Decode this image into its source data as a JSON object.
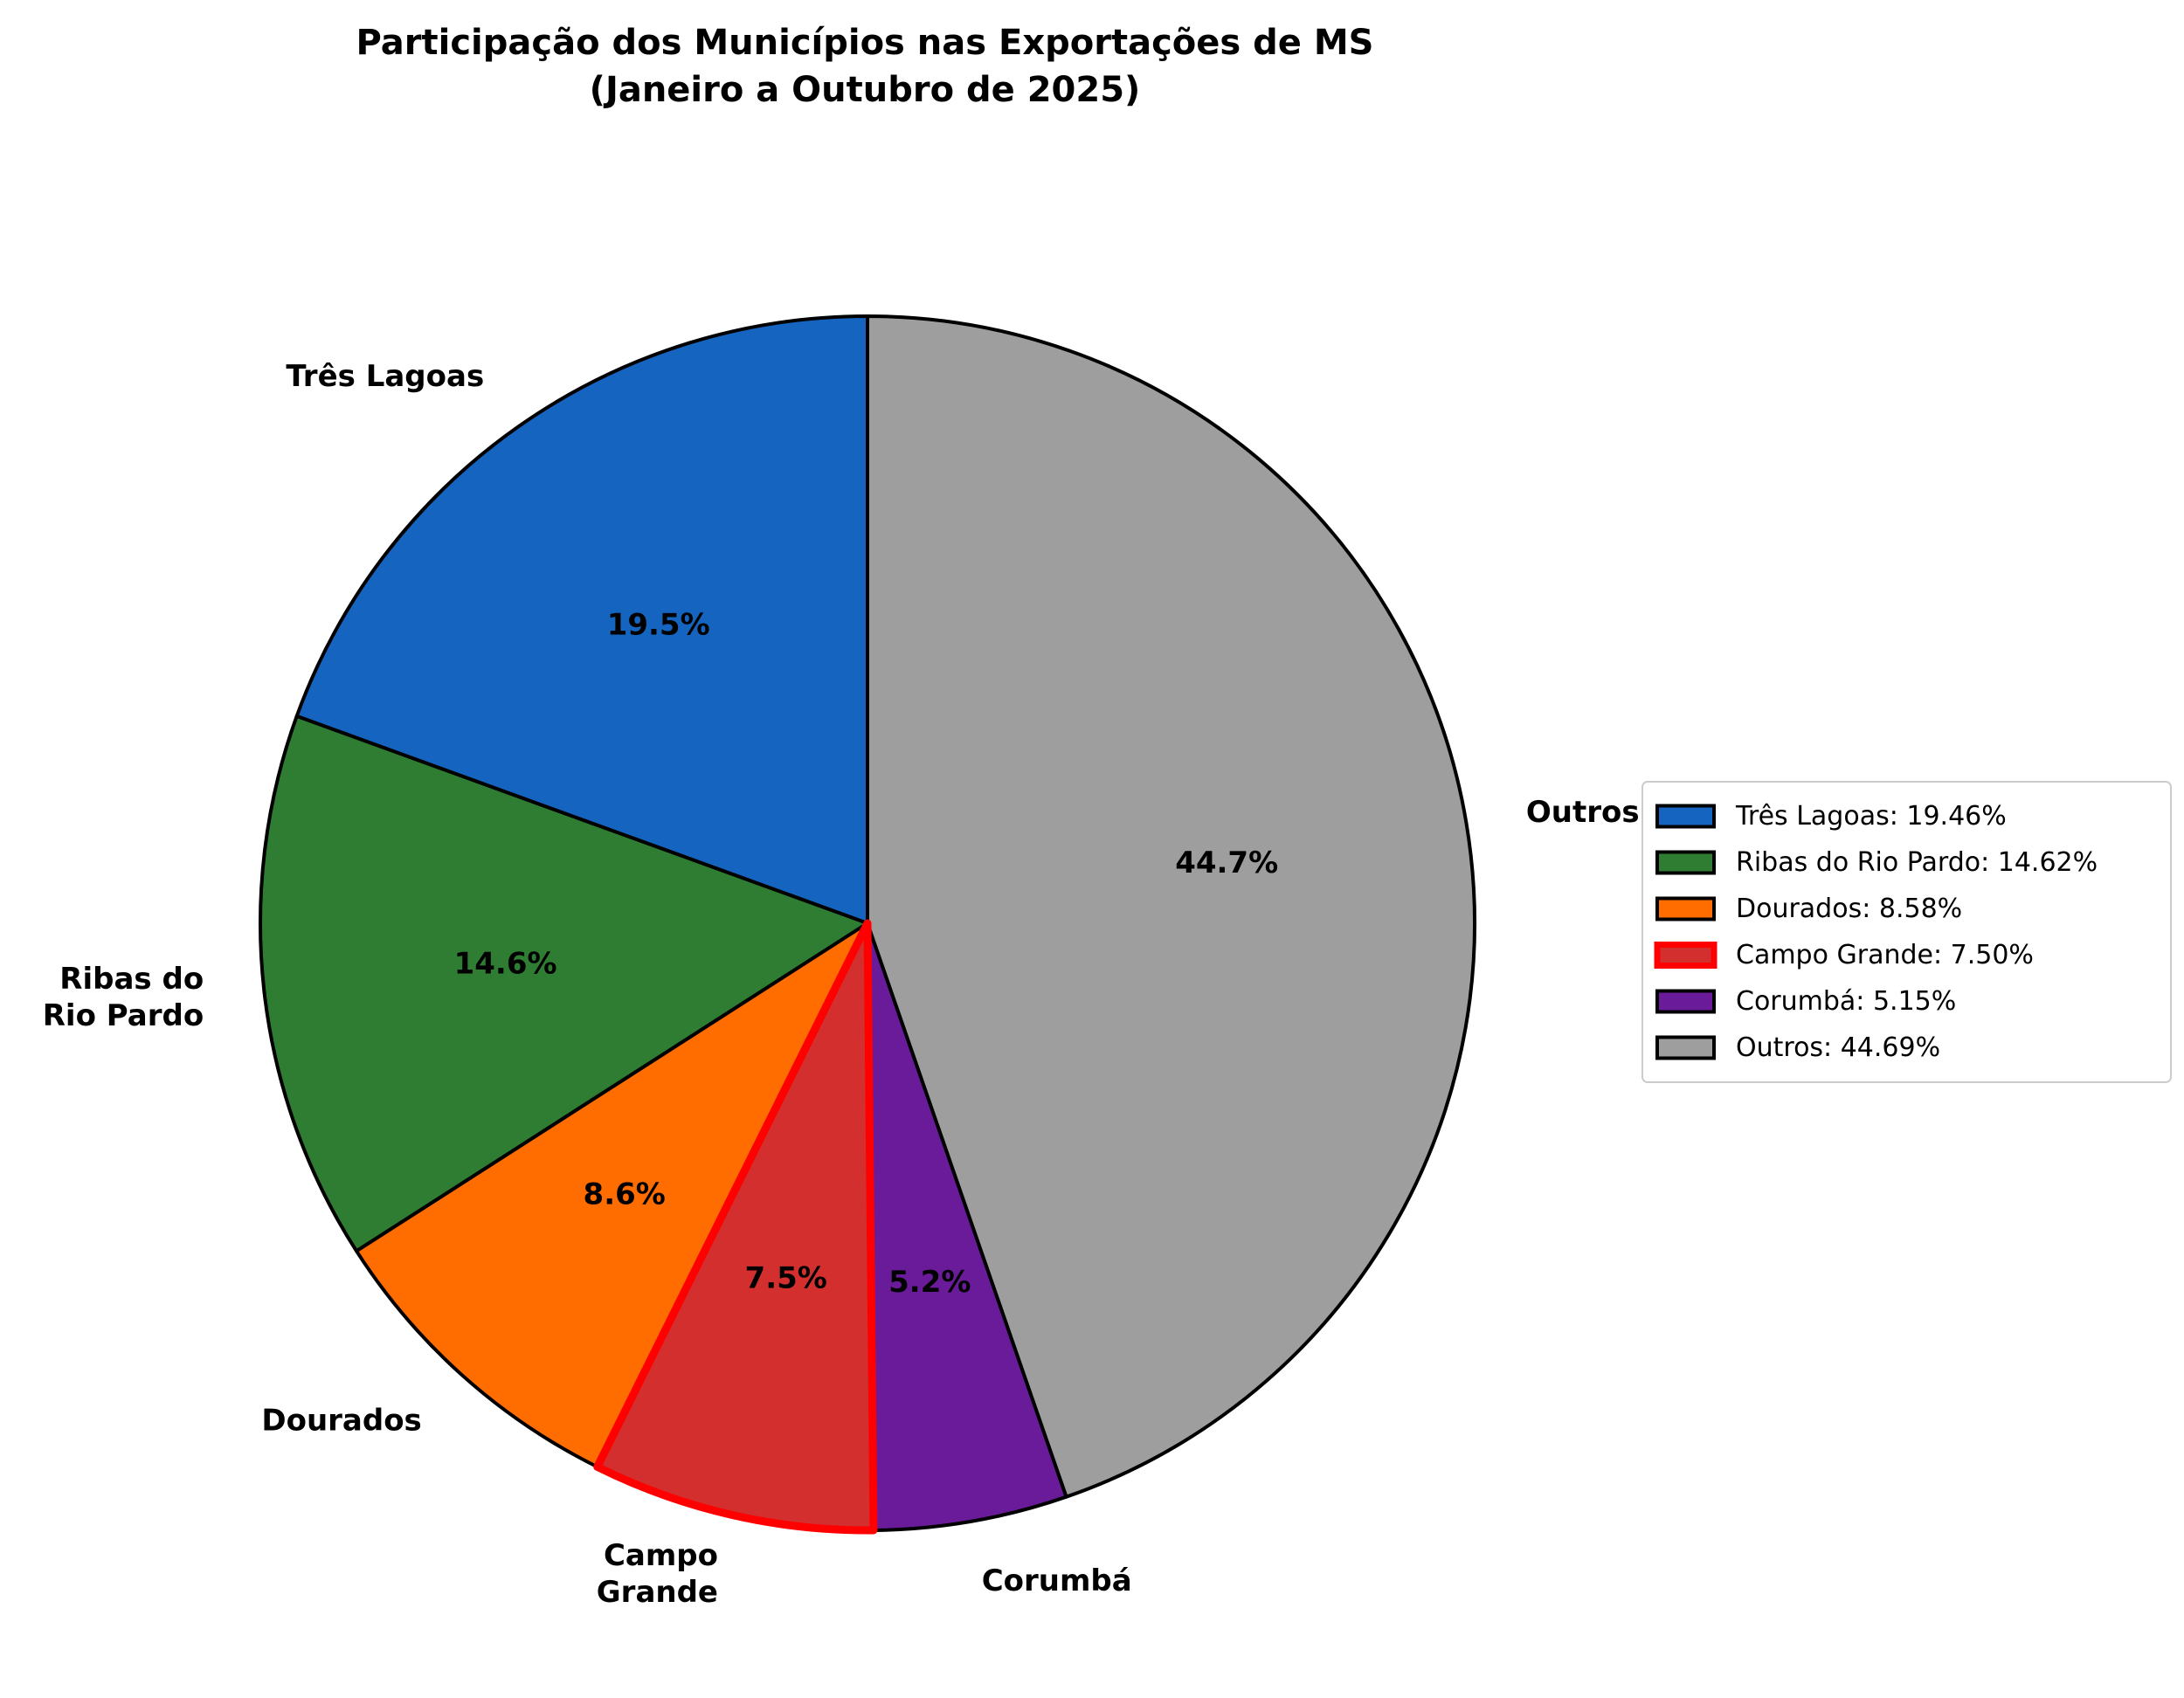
{
  "chart_data": {
    "type": "pie",
    "title": "Participação dos Municípios nas Exportações de MS",
    "subtitle": "(Janeiro a Outubro de 2025)",
    "start_angle_deg": 90,
    "direction": "counterclockwise",
    "legend_position": "right",
    "highlighted_slice": "Campo Grande",
    "slices": [
      {
        "name": "Três Lagoas",
        "label_lines": [
          "Três Lagoas"
        ],
        "value": 19.46,
        "pct_label": "19.5%",
        "legend_label": "Três Lagoas: 19.46%",
        "color": "#1565c0",
        "edge_color": "#000000"
      },
      {
        "name": "Ribas do Rio Pardo",
        "label_lines": [
          "Ribas do",
          "Rio Pardo"
        ],
        "value": 14.62,
        "pct_label": "14.6%",
        "legend_label": "Ribas do Rio Pardo: 14.62%",
        "color": "#2e7d32",
        "edge_color": "#000000"
      },
      {
        "name": "Dourados",
        "label_lines": [
          "Dourados"
        ],
        "value": 8.58,
        "pct_label": "8.6%",
        "legend_label": "Dourados: 8.58%",
        "color": "#ff6d00",
        "edge_color": "#000000"
      },
      {
        "name": "Campo Grande",
        "label_lines": [
          "Campo",
          "Grande"
        ],
        "value": 7.5,
        "pct_label": "7.5%",
        "legend_label": "Campo Grande: 7.50%",
        "color": "#d32f2f",
        "edge_color": "#ff0000"
      },
      {
        "name": "Corumbá",
        "label_lines": [
          "Corumbá"
        ],
        "value": 5.15,
        "pct_label": "5.2%",
        "legend_label": "Corumbá: 5.15%",
        "color": "#6a1b9a",
        "edge_color": "#000000"
      },
      {
        "name": "Outros",
        "label_lines": [
          "Outros"
        ],
        "value": 44.69,
        "pct_label": "44.7%",
        "legend_label": "Outros: 44.69%",
        "color": "#9e9e9e",
        "edge_color": "#000000"
      }
    ]
  }
}
